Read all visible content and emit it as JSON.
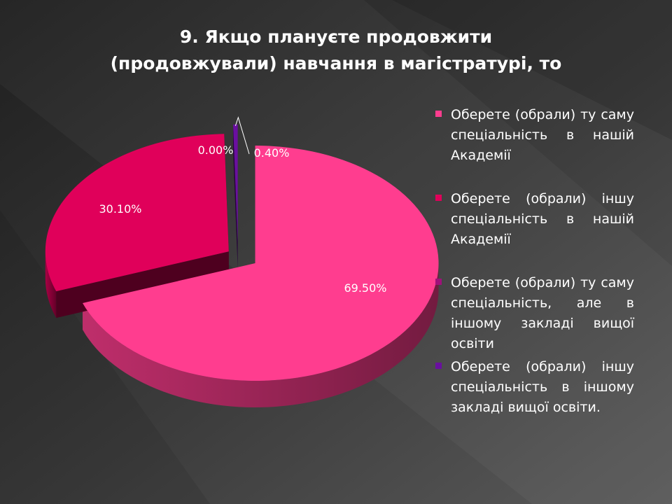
{
  "title_lines": [
    "9. Якщо плануєте продовжити",
    "(продовжували) навчання в магістратурі, то"
  ],
  "colors": {
    "background": "#3a3a3a",
    "slice_1": "#ff3d8f",
    "slice_2": "#e0005a",
    "slice_3": "#a0107a",
    "slice_4": "#6a0fa0"
  },
  "chart_data": {
    "type": "pie",
    "title": "9. Якщо плануєте продовжити (продовжували) навчання в магістратурі, то",
    "style": "3d-exploded",
    "legend_position": "right",
    "series": [
      {
        "label": "Оберете (обрали) ту саму спеціальність в нашій Академії",
        "value": 69.5,
        "display": "69.50%",
        "color": "#ff3d8f"
      },
      {
        "label": "Оберете (обрали) іншу спеціальність в нашій Академії",
        "value": 30.1,
        "display": "30.10%",
        "color": "#e0005a"
      },
      {
        "label": "Оберете (обрали) ту саму спеціальність, але в іншому закладі вищої освіти",
        "value": 0.0,
        "display": "0.00%",
        "color": "#a0107a"
      },
      {
        "label": "Оберете (обрали) іншу спеціальність в іншому закладі вищої освіти.",
        "value": 0.4,
        "display": "0.40%",
        "color": "#6a0fa0"
      }
    ]
  }
}
